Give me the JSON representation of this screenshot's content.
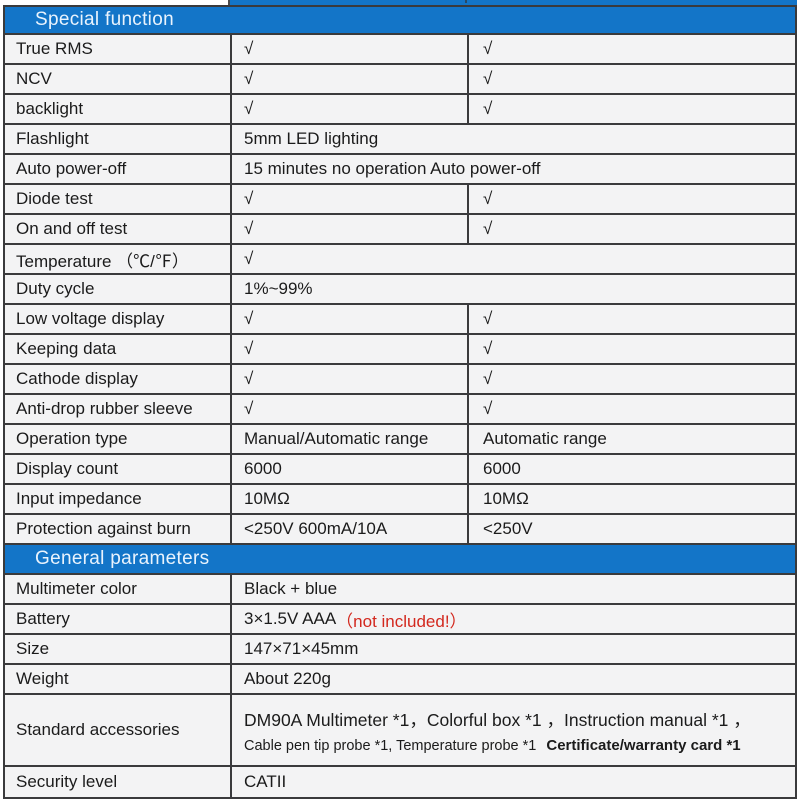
{
  "accent": {
    "header_blue": "#1375c8",
    "warning_red": "#d3281e",
    "cell_bg": "#f3f3f4",
    "border": "#3a3a3c"
  },
  "sections": [
    {
      "title": "Special function",
      "rows": [
        {
          "label": "True RMS",
          "col2": "√",
          "col3": "√"
        },
        {
          "label": "NCV",
          "col2": "√",
          "col3": "√"
        },
        {
          "label": "backlight",
          "col2": "√",
          "col3": "√"
        },
        {
          "label": "Flashlight",
          "value": "5mm LED lighting"
        },
        {
          "label": "Auto power-off",
          "value": "15 minutes no operation Auto power-off"
        },
        {
          "label": "Diode test",
          "col2": "√",
          "col3": "√"
        },
        {
          "label": "On and off test",
          "col2": "√",
          "col3": "√"
        },
        {
          "label": "Temperature （℃/℉）",
          "value": "√"
        },
        {
          "label": "Duty cycle",
          "value": "1%~99%"
        },
        {
          "label": "Low voltage display",
          "col2": "√",
          "col3": "√"
        },
        {
          "label": "Keeping data",
          "col2": "√",
          "col3": "√"
        },
        {
          "label": "Cathode display",
          "col2": "√",
          "col3": "√"
        },
        {
          "label": "Anti-drop rubber sleeve",
          "col2": "√",
          "col3": "√"
        },
        {
          "label": "Operation type",
          "col2": "Manual/Automatic range",
          "col3": "Automatic range"
        },
        {
          "label": "Display count",
          "col2": "6000",
          "col3": "6000"
        },
        {
          "label": "Input impedance",
          "col2": "10MΩ",
          "col3": "10MΩ"
        },
        {
          "label": "Protection against burn",
          "col2": "<250V 600mA/10A",
          "col3": "<250V"
        }
      ]
    },
    {
      "title": "General parameters",
      "rows": [
        {
          "label": "Multimeter color",
          "value": "Black + blue"
        },
        {
          "label": "Battery",
          "value": "3×1.5V AAA ",
          "value_red": "（not included!）"
        },
        {
          "label": "Size",
          "value": "147×71×45mm"
        },
        {
          "label": "Weight",
          "value": "About 220g"
        },
        {
          "label": "Standard accessories",
          "line1": "DM90A Multimeter *1，Colorful box *1 ，Instruction manual *1 ，",
          "line2": "Cable pen tip probe *1, Temperature probe *1",
          "line2_bold": "Certificate/warranty card *1"
        },
        {
          "label": "Security level",
          "value": "CATII"
        }
      ]
    }
  ]
}
